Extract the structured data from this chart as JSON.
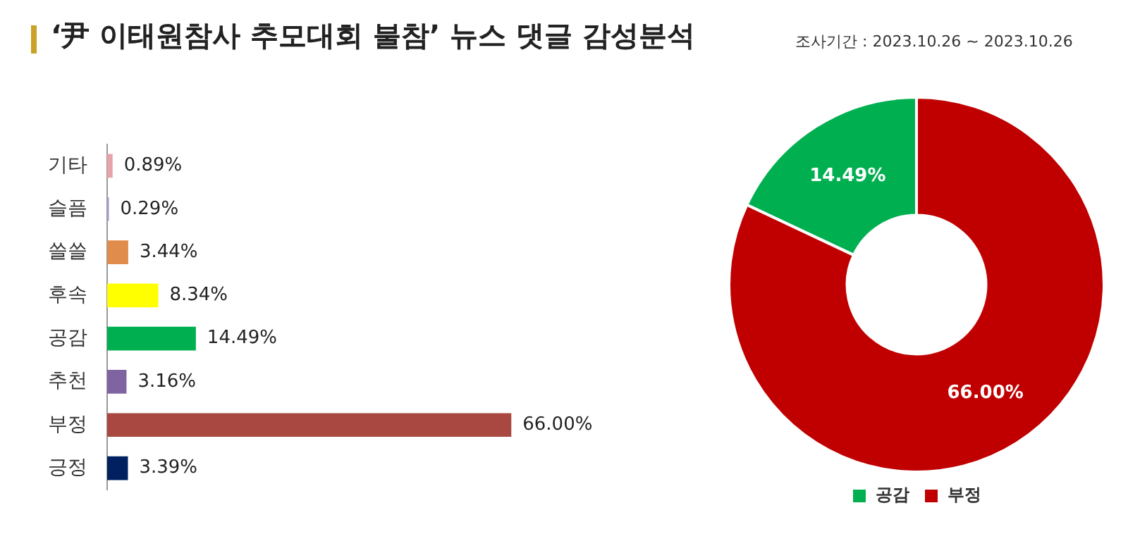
{
  "chart_data": [
    {
      "type": "bar",
      "orientation": "horizontal",
      "title": "‘尹 이태원참사 추모대회 불참’ 뉴스 댓글 감성분석",
      "categories": [
        "기타",
        "슬픔",
        "쓸쓸",
        "후속",
        "공감",
        "추천",
        "부정",
        "긍정"
      ],
      "values": [
        0.89,
        0.29,
        3.44,
        8.34,
        14.49,
        3.16,
        66.0,
        3.39
      ],
      "colors": [
        "#e6a3a8",
        "#a79bd0",
        "#e08c4c",
        "#ffff00",
        "#00b050",
        "#8064a2",
        "#a84840",
        "#002060"
      ],
      "value_labels": [
        "0.89%",
        "0.29%",
        "3.44%",
        "8.34%",
        "14.49%",
        "3.16%",
        "66.00%",
        "3.39%"
      ],
      "tick_labels": "y",
      "grid": false,
      "legend": false
    },
    {
      "type": "donut",
      "subtitle": "조사기간 : 2023.10.26 ~ 2023.10.26",
      "categories": [
        "공감",
        "부정"
      ],
      "values": [
        14.49,
        66.0
      ],
      "colors": [
        "#00b050",
        "#c00000"
      ],
      "value_labels": [
        "14.49%",
        "66.00%"
      ],
      "legend": "bottom"
    }
  ]
}
